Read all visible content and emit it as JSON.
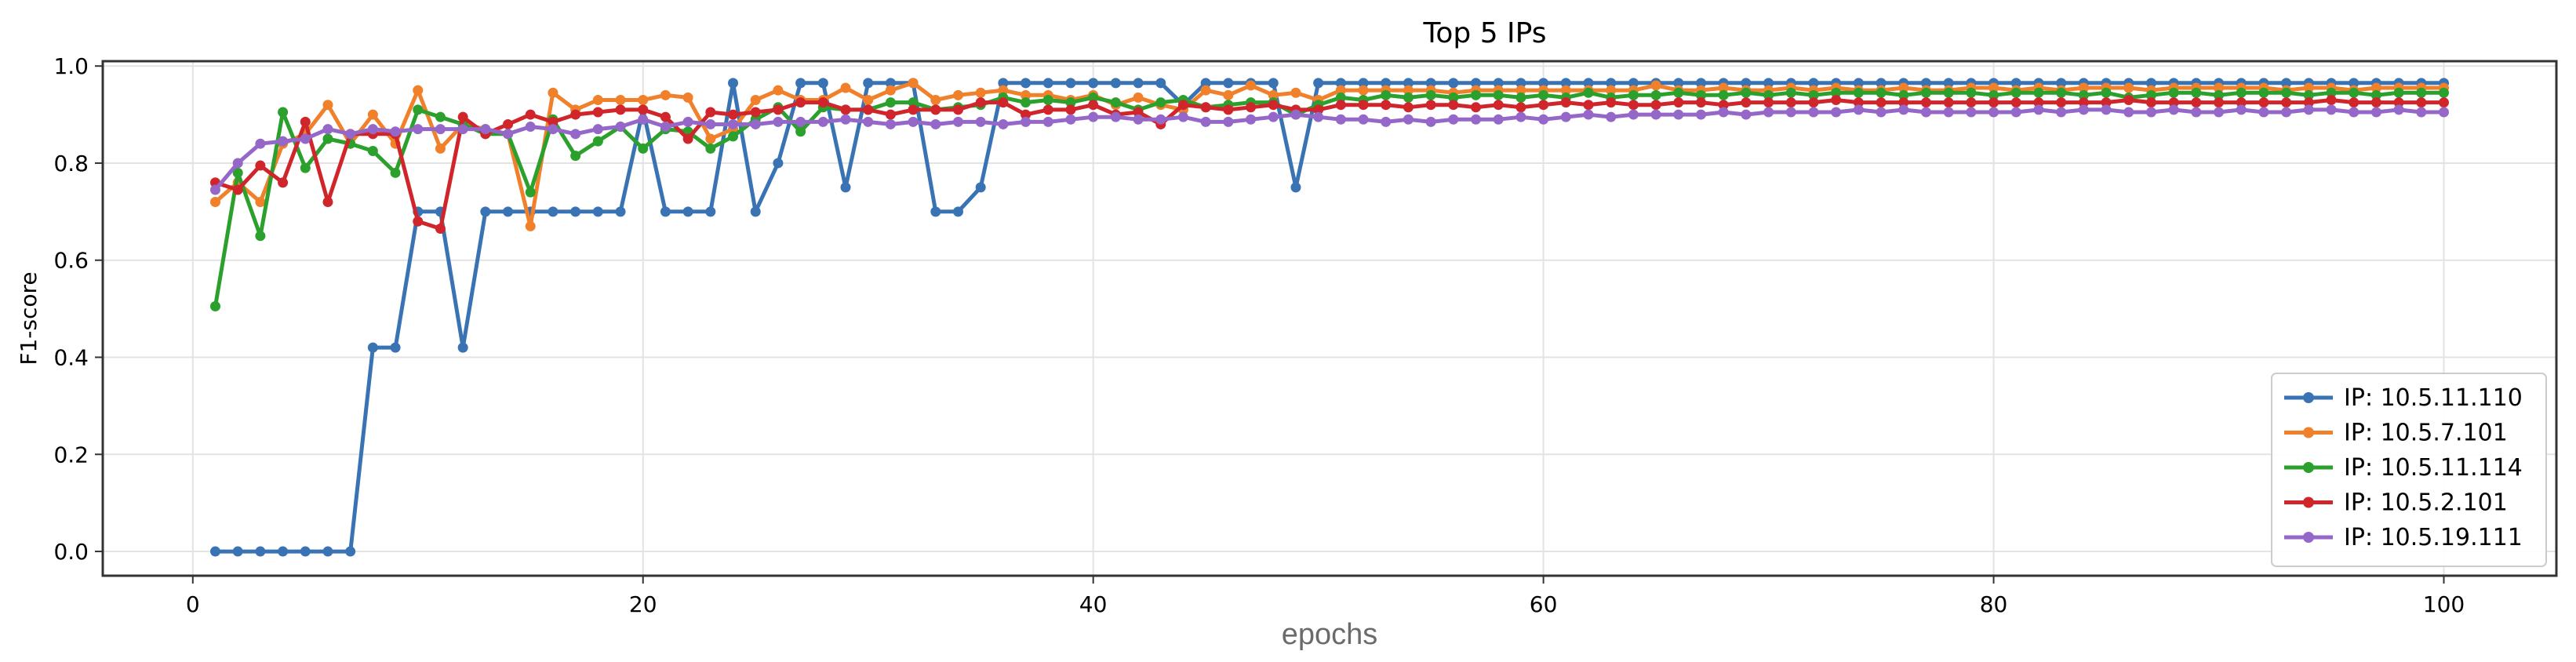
{
  "chart_data": {
    "type": "line",
    "title": "Top 5 IPs",
    "xlabel": "epochs",
    "ylabel": "F1-score",
    "xlim": [
      -4,
      105
    ],
    "ylim": [
      -0.05,
      1.01
    ],
    "xticks": [
      0,
      20,
      40,
      60,
      80,
      100
    ],
    "yticks": [
      0.0,
      0.2,
      0.4,
      0.6,
      0.8,
      1.0
    ],
    "ytick_labels": [
      "0.0",
      "0.2",
      "0.4",
      "0.6",
      "0.8",
      "1.0"
    ],
    "grid": true,
    "legend_position": "lower-right",
    "series": [
      {
        "name": "IP: 10.5.11.110",
        "color": "#3a73b3",
        "x": [
          1,
          2,
          3,
          4,
          5,
          6,
          7,
          8,
          9,
          10,
          11,
          12,
          13,
          14,
          15,
          16,
          17,
          18,
          19,
          20,
          21,
          22,
          23,
          24,
          25,
          26,
          27,
          28,
          29,
          30,
          31,
          32,
          33,
          34,
          35,
          36,
          37,
          38,
          39,
          40,
          41,
          42,
          43,
          44,
          45,
          46,
          47,
          48,
          49,
          50,
          51,
          52,
          53,
          54,
          55,
          56,
          57,
          58,
          59,
          60,
          61,
          62,
          63,
          64,
          65,
          66,
          67,
          68,
          69,
          70,
          71,
          72,
          73,
          74,
          75,
          76,
          77,
          78,
          79,
          80,
          81,
          82,
          83,
          84,
          85,
          86,
          87,
          88,
          89,
          90,
          91,
          92,
          93,
          94,
          95,
          96,
          97,
          98,
          99,
          100
        ],
        "values": [
          0.0,
          0.0,
          0.0,
          0.0,
          0.0,
          0.0,
          0.0,
          0.42,
          0.42,
          0.7,
          0.7,
          0.42,
          0.7,
          0.7,
          0.7,
          0.7,
          0.7,
          0.7,
          0.7,
          0.91,
          0.7,
          0.7,
          0.7,
          0.965,
          0.7,
          0.8,
          0.965,
          0.965,
          0.75,
          0.965,
          0.965,
          0.965,
          0.7,
          0.7,
          0.75,
          0.965,
          0.965,
          0.965,
          0.965,
          0.965,
          0.965,
          0.965,
          0.965,
          0.92,
          0.965,
          0.965,
          0.965,
          0.965,
          0.75,
          0.965,
          0.965,
          0.965,
          0.965,
          0.965,
          0.965,
          0.965,
          0.965,
          0.965,
          0.965,
          0.965,
          0.965,
          0.965,
          0.965,
          0.965,
          0.965,
          0.965,
          0.965,
          0.965,
          0.965,
          0.965,
          0.965,
          0.965,
          0.965,
          0.965,
          0.965,
          0.965,
          0.965,
          0.965,
          0.965,
          0.965,
          0.965,
          0.965,
          0.965,
          0.965,
          0.965,
          0.965,
          0.965,
          0.965,
          0.965,
          0.965,
          0.965,
          0.965,
          0.965,
          0.965,
          0.965,
          0.965,
          0.965,
          0.965,
          0.965,
          0.965
        ]
      },
      {
        "name": "IP: 10.5.7.101",
        "color": "#f0802a",
        "x": [
          1,
          2,
          3,
          4,
          5,
          6,
          7,
          8,
          9,
          10,
          11,
          12,
          13,
          14,
          15,
          16,
          17,
          18,
          19,
          20,
          21,
          22,
          23,
          24,
          25,
          26,
          27,
          28,
          29,
          30,
          31,
          32,
          33,
          34,
          35,
          36,
          37,
          38,
          39,
          40,
          41,
          42,
          43,
          44,
          45,
          46,
          47,
          48,
          49,
          50,
          51,
          52,
          53,
          54,
          55,
          56,
          57,
          58,
          59,
          60,
          61,
          62,
          63,
          64,
          65,
          66,
          67,
          68,
          69,
          70,
          71,
          72,
          73,
          74,
          75,
          76,
          77,
          78,
          79,
          80,
          81,
          82,
          83,
          84,
          85,
          86,
          87,
          88,
          89,
          90,
          91,
          92,
          93,
          94,
          95,
          96,
          97,
          98,
          99,
          100
        ],
        "values": [
          0.72,
          0.76,
          0.72,
          0.84,
          0.86,
          0.92,
          0.84,
          0.9,
          0.84,
          0.95,
          0.83,
          0.88,
          0.87,
          0.86,
          0.67,
          0.945,
          0.91,
          0.93,
          0.93,
          0.93,
          0.94,
          0.935,
          0.85,
          0.87,
          0.93,
          0.95,
          0.93,
          0.93,
          0.955,
          0.93,
          0.95,
          0.965,
          0.93,
          0.94,
          0.945,
          0.95,
          0.94,
          0.94,
          0.93,
          0.94,
          0.92,
          0.935,
          0.92,
          0.91,
          0.95,
          0.94,
          0.96,
          0.94,
          0.945,
          0.93,
          0.95,
          0.95,
          0.95,
          0.95,
          0.95,
          0.945,
          0.95,
          0.95,
          0.95,
          0.95,
          0.95,
          0.95,
          0.95,
          0.95,
          0.96,
          0.95,
          0.95,
          0.955,
          0.95,
          0.95,
          0.955,
          0.95,
          0.955,
          0.95,
          0.95,
          0.955,
          0.95,
          0.95,
          0.955,
          0.955,
          0.95,
          0.955,
          0.95,
          0.955,
          0.955,
          0.955,
          0.95,
          0.955,
          0.955,
          0.955,
          0.955,
          0.955,
          0.95,
          0.955,
          0.955,
          0.95,
          0.955,
          0.955,
          0.955,
          0.955
        ]
      },
      {
        "name": "IP: 10.5.11.114",
        "color": "#2ca02c",
        "x": [
          1,
          2,
          3,
          4,
          5,
          6,
          7,
          8,
          9,
          10,
          11,
          12,
          13,
          14,
          15,
          16,
          17,
          18,
          19,
          20,
          21,
          22,
          23,
          24,
          25,
          26,
          27,
          28,
          29,
          30,
          31,
          32,
          33,
          34,
          35,
          36,
          37,
          38,
          39,
          40,
          41,
          42,
          43,
          44,
          45,
          46,
          47,
          48,
          49,
          50,
          51,
          52,
          53,
          54,
          55,
          56,
          57,
          58,
          59,
          60,
          61,
          62,
          63,
          64,
          65,
          66,
          67,
          68,
          69,
          70,
          71,
          72,
          73,
          74,
          75,
          76,
          77,
          78,
          79,
          80,
          81,
          82,
          83,
          84,
          85,
          86,
          87,
          88,
          89,
          90,
          91,
          92,
          93,
          94,
          95,
          96,
          97,
          98,
          99,
          100
        ],
        "values": [
          0.505,
          0.78,
          0.65,
          0.905,
          0.79,
          0.85,
          0.84,
          0.825,
          0.78,
          0.91,
          0.895,
          0.88,
          0.86,
          0.86,
          0.74,
          0.89,
          0.815,
          0.845,
          0.875,
          0.83,
          0.87,
          0.865,
          0.83,
          0.855,
          0.89,
          0.915,
          0.865,
          0.915,
          0.91,
          0.91,
          0.925,
          0.925,
          0.91,
          0.915,
          0.92,
          0.935,
          0.925,
          0.93,
          0.925,
          0.935,
          0.925,
          0.91,
          0.925,
          0.93,
          0.915,
          0.92,
          0.925,
          0.925,
          0.9,
          0.92,
          0.935,
          0.93,
          0.94,
          0.935,
          0.94,
          0.935,
          0.94,
          0.94,
          0.935,
          0.94,
          0.935,
          0.945,
          0.935,
          0.94,
          0.94,
          0.945,
          0.94,
          0.94,
          0.945,
          0.94,
          0.945,
          0.94,
          0.945,
          0.945,
          0.945,
          0.94,
          0.945,
          0.945,
          0.945,
          0.94,
          0.945,
          0.945,
          0.945,
          0.94,
          0.945,
          0.935,
          0.94,
          0.945,
          0.945,
          0.94,
          0.945,
          0.945,
          0.945,
          0.94,
          0.945,
          0.945,
          0.94,
          0.945,
          0.945,
          0.945
        ]
      },
      {
        "name": "IP: 10.5.2.101",
        "color": "#d0262b",
        "x": [
          1,
          2,
          3,
          4,
          5,
          6,
          7,
          8,
          9,
          10,
          11,
          12,
          13,
          14,
          15,
          16,
          17,
          18,
          19,
          20,
          21,
          22,
          23,
          24,
          25,
          26,
          27,
          28,
          29,
          30,
          31,
          32,
          33,
          34,
          35,
          36,
          37,
          38,
          39,
          40,
          41,
          42,
          43,
          44,
          45,
          46,
          47,
          48,
          49,
          50,
          51,
          52,
          53,
          54,
          55,
          56,
          57,
          58,
          59,
          60,
          61,
          62,
          63,
          64,
          65,
          66,
          67,
          68,
          69,
          70,
          71,
          72,
          73,
          74,
          75,
          76,
          77,
          78,
          79,
          80,
          81,
          82,
          83,
          84,
          85,
          86,
          87,
          88,
          89,
          90,
          91,
          92,
          93,
          94,
          95,
          96,
          97,
          98,
          99,
          100
        ],
        "values": [
          0.76,
          0.745,
          0.795,
          0.76,
          0.885,
          0.72,
          0.86,
          0.86,
          0.86,
          0.68,
          0.665,
          0.895,
          0.86,
          0.88,
          0.9,
          0.885,
          0.9,
          0.905,
          0.91,
          0.91,
          0.895,
          0.85,
          0.905,
          0.9,
          0.905,
          0.91,
          0.925,
          0.925,
          0.91,
          0.91,
          0.9,
          0.91,
          0.91,
          0.91,
          0.925,
          0.925,
          0.9,
          0.91,
          0.91,
          0.92,
          0.9,
          0.905,
          0.88,
          0.92,
          0.915,
          0.91,
          0.915,
          0.92,
          0.91,
          0.91,
          0.92,
          0.92,
          0.92,
          0.915,
          0.92,
          0.92,
          0.915,
          0.92,
          0.915,
          0.92,
          0.925,
          0.92,
          0.925,
          0.92,
          0.92,
          0.925,
          0.925,
          0.92,
          0.925,
          0.925,
          0.925,
          0.925,
          0.93,
          0.925,
          0.925,
          0.925,
          0.925,
          0.925,
          0.925,
          0.925,
          0.925,
          0.925,
          0.925,
          0.925,
          0.925,
          0.93,
          0.925,
          0.925,
          0.925,
          0.925,
          0.925,
          0.925,
          0.925,
          0.925,
          0.93,
          0.925,
          0.925,
          0.925,
          0.925,
          0.925
        ]
      },
      {
        "name": "IP: 10.5.19.111",
        "color": "#9467c9",
        "x": [
          1,
          2,
          3,
          4,
          5,
          6,
          7,
          8,
          9,
          10,
          11,
          12,
          13,
          14,
          15,
          16,
          17,
          18,
          19,
          20,
          21,
          22,
          23,
          24,
          25,
          26,
          27,
          28,
          29,
          30,
          31,
          32,
          33,
          34,
          35,
          36,
          37,
          38,
          39,
          40,
          41,
          42,
          43,
          44,
          45,
          46,
          47,
          48,
          49,
          50,
          51,
          52,
          53,
          54,
          55,
          56,
          57,
          58,
          59,
          60,
          61,
          62,
          63,
          64,
          65,
          66,
          67,
          68,
          69,
          70,
          71,
          72,
          73,
          74,
          75,
          76,
          77,
          78,
          79,
          80,
          81,
          82,
          83,
          84,
          85,
          86,
          87,
          88,
          89,
          90,
          91,
          92,
          93,
          94,
          95,
          96,
          97,
          98,
          99,
          100
        ],
        "values": [
          0.745,
          0.8,
          0.84,
          0.845,
          0.85,
          0.87,
          0.86,
          0.87,
          0.865,
          0.87,
          0.87,
          0.87,
          0.87,
          0.86,
          0.875,
          0.87,
          0.86,
          0.87,
          0.875,
          0.89,
          0.875,
          0.885,
          0.88,
          0.88,
          0.88,
          0.885,
          0.885,
          0.885,
          0.89,
          0.885,
          0.88,
          0.885,
          0.88,
          0.885,
          0.885,
          0.88,
          0.885,
          0.885,
          0.89,
          0.895,
          0.895,
          0.89,
          0.89,
          0.895,
          0.885,
          0.885,
          0.89,
          0.895,
          0.9,
          0.895,
          0.89,
          0.89,
          0.885,
          0.89,
          0.885,
          0.89,
          0.89,
          0.89,
          0.895,
          0.89,
          0.895,
          0.9,
          0.895,
          0.9,
          0.9,
          0.9,
          0.9,
          0.905,
          0.9,
          0.905,
          0.905,
          0.905,
          0.905,
          0.91,
          0.905,
          0.91,
          0.905,
          0.905,
          0.905,
          0.905,
          0.905,
          0.91,
          0.905,
          0.91,
          0.91,
          0.905,
          0.905,
          0.91,
          0.905,
          0.905,
          0.91,
          0.905,
          0.905,
          0.91,
          0.91,
          0.905,
          0.905,
          0.91,
          0.905,
          0.905
        ]
      }
    ]
  }
}
